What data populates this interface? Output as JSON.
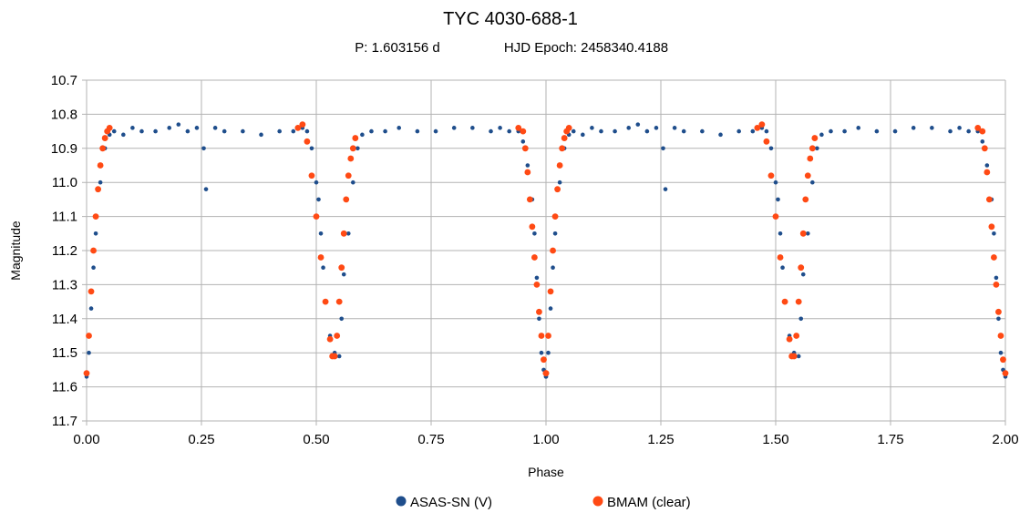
{
  "chart_data": {
    "type": "scatter",
    "title": "TYC 4030-688-1",
    "subtitle_period": "P: 1.603156 d",
    "subtitle_epoch": "HJD Epoch: 2458340.4188",
    "xlabel": "Phase",
    "ylabel": "Magnitude",
    "xlim": [
      0,
      2
    ],
    "ylim": [
      10.7,
      11.7
    ],
    "y_inverted": true,
    "grid": true,
    "legend_position": "bottom",
    "x_ticks": [
      "0.00",
      "0.25",
      "0.50",
      "0.75",
      "1.00",
      "1.25",
      "1.50",
      "1.75",
      "2.00"
    ],
    "y_ticks": [
      "10.7",
      "10.8",
      "10.9",
      "11.0",
      "11.1",
      "11.2",
      "11.3",
      "11.4",
      "11.5",
      "11.6",
      "11.7"
    ],
    "series": [
      {
        "name": "ASAS-SN (V)",
        "color": "#1f4e8c",
        "x": [
          0.0,
          0.005,
          0.01,
          0.015,
          0.02,
          0.03,
          0.04,
          0.05,
          0.06,
          0.08,
          0.1,
          0.12,
          0.15,
          0.18,
          0.2,
          0.22,
          0.24,
          0.255,
          0.26,
          0.28,
          0.3,
          0.34,
          0.38,
          0.42,
          0.45,
          0.47,
          0.48,
          0.49,
          0.5,
          0.505,
          0.51,
          0.515,
          0.52,
          0.53,
          0.54,
          0.55,
          0.555,
          0.56,
          0.57,
          0.58,
          0.59,
          0.6,
          0.62,
          0.65,
          0.68,
          0.72,
          0.76,
          0.8,
          0.84,
          0.88,
          0.9,
          0.92,
          0.94,
          0.95,
          0.96,
          0.97,
          0.975,
          0.98,
          0.985,
          0.99,
          0.995,
          1.0
        ],
        "y": [
          11.57,
          11.5,
          11.37,
          11.25,
          11.15,
          11.0,
          10.9,
          10.86,
          10.85,
          10.86,
          10.84,
          10.85,
          10.85,
          10.84,
          10.83,
          10.85,
          10.84,
          10.9,
          11.02,
          10.84,
          10.85,
          10.85,
          10.86,
          10.85,
          10.85,
          10.84,
          10.85,
          10.9,
          11.0,
          11.05,
          11.15,
          11.25,
          11.35,
          11.45,
          11.5,
          11.51,
          11.4,
          11.27,
          11.15,
          11.0,
          10.9,
          10.86,
          10.85,
          10.85,
          10.84,
          10.85,
          10.85,
          10.84,
          10.84,
          10.85,
          10.84,
          10.85,
          10.85,
          10.88,
          10.95,
          11.05,
          11.15,
          11.28,
          11.4,
          11.5,
          11.55,
          11.57
        ]
      },
      {
        "name": "BMAM (clear)",
        "color": "#ff4a14",
        "x": [
          0.0,
          0.005,
          0.01,
          0.015,
          0.02,
          0.025,
          0.03,
          0.035,
          0.04,
          0.045,
          0.05,
          0.46,
          0.47,
          0.48,
          0.49,
          0.5,
          0.51,
          0.52,
          0.53,
          0.535,
          0.54,
          0.545,
          0.55,
          0.555,
          0.56,
          0.565,
          0.57,
          0.575,
          0.58,
          0.585,
          0.94,
          0.95,
          0.955,
          0.96,
          0.965,
          0.97,
          0.975,
          0.98,
          0.985,
          0.99,
          0.995,
          1.0
        ],
        "y": [
          11.56,
          11.45,
          11.32,
          11.2,
          11.1,
          11.02,
          10.95,
          10.9,
          10.87,
          10.85,
          10.84,
          10.84,
          10.83,
          10.88,
          10.98,
          11.1,
          11.22,
          11.35,
          11.46,
          11.51,
          11.51,
          11.45,
          11.35,
          11.25,
          11.15,
          11.05,
          10.98,
          10.93,
          10.9,
          10.87,
          10.84,
          10.85,
          10.9,
          10.97,
          11.05,
          11.13,
          11.22,
          11.3,
          11.38,
          11.45,
          11.52,
          11.56
        ]
      }
    ]
  }
}
